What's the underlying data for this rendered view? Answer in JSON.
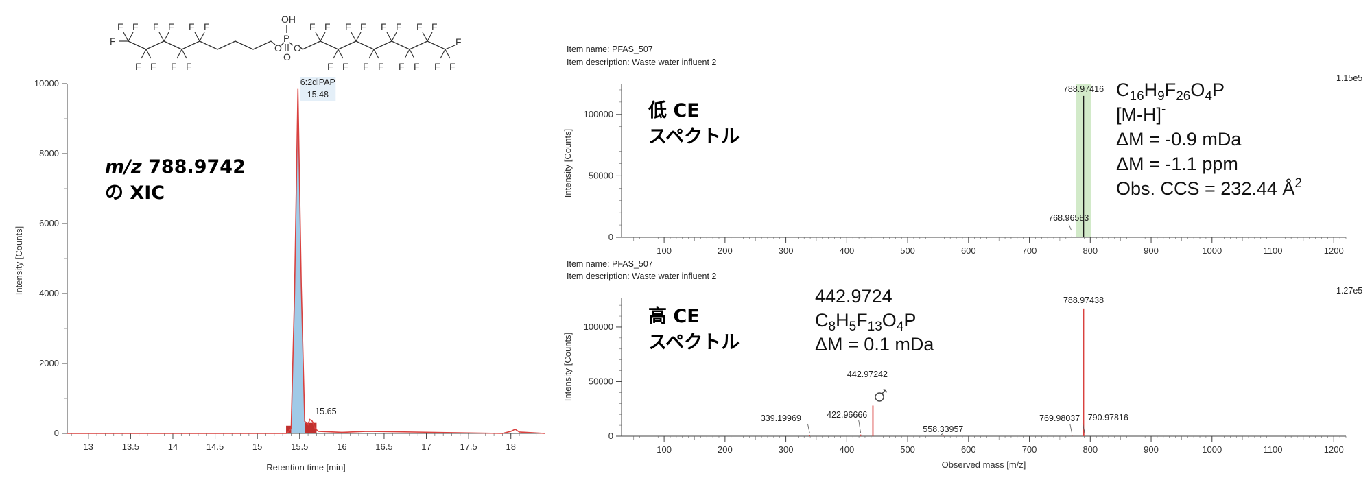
{
  "structure": {
    "name": "6:2diPAP",
    "oh_label": "OH",
    "p_label": "P",
    "o_label": "O",
    "f_label": "F"
  },
  "chart_data": [
    {
      "id": "xic",
      "type": "line",
      "xlabel": "Retention time [min]",
      "ylabel": "Intensity [Counts]",
      "xlim": [
        12.75,
        18.4
      ],
      "ylim": [
        0,
        10000
      ],
      "xticks": [
        "13",
        "13.5",
        "14",
        "14.5",
        "15",
        "15.5",
        "16",
        "16.5",
        "17",
        "17.5",
        "18"
      ],
      "yticks": [
        "0",
        "2000",
        "4000",
        "6000",
        "8000",
        "10000"
      ],
      "annotation_line1_italic": "m/z",
      "annotation_line1_value": " 788.9742",
      "annotation_line2": "の XIC",
      "peaks": [
        {
          "name": "6:2diPAP",
          "rt": "15.48",
          "x": 15.48,
          "y": 9850
        },
        {
          "name": "",
          "rt": "15.65",
          "x": 15.65,
          "y": 350
        }
      ],
      "series": [
        {
          "color": "#d9413f",
          "x": [
            12.75,
            15.35,
            15.4,
            15.44,
            15.48,
            15.52,
            15.56,
            15.6,
            15.62,
            15.65,
            15.68,
            15.72,
            16.0,
            16.3,
            17.9,
            18.0,
            18.05,
            18.1,
            18.4
          ],
          "y": [
            0,
            0,
            150,
            4000,
            9850,
            4200,
            350,
            250,
            400,
            350,
            150,
            60,
            30,
            60,
            0,
            60,
            120,
            40,
            0
          ]
        }
      ]
    },
    {
      "id": "low-ce",
      "type": "bar",
      "item_name": "Item name: PFAS_507",
      "item_description": "Item description: Waste water influent 2",
      "max_label": "1.15e5",
      "ylabel": "Intensity [Counts]",
      "xlim": [
        30,
        1220
      ],
      "ylim": [
        0,
        125000
      ],
      "xticks": [
        "100",
        "200",
        "300",
        "400",
        "500",
        "600",
        "700",
        "800",
        "900",
        "1000",
        "1100",
        "1200"
      ],
      "yticks": [
        "0",
        "50000",
        "100000"
      ],
      "spectrum_label_line1": "低 CE",
      "spectrum_label_line2": "スペクトル",
      "formula": {
        "C": "C",
        "c_sub": "16",
        "H": "H",
        "h_sub": "9",
        "F": "F",
        "f_sub": "26",
        "O": "O",
        "o_sub": "4",
        "P": "P"
      },
      "adduct": "[M-H]",
      "adduct_sup": "-",
      "delta_mda": "ΔM = -0.9 mDa",
      "delta_ppm": "ΔM = -1.1 ppm",
      "ccs": "Obs. CCS = 232.44 Å",
      "ccs_sup": "2",
      "highlight_range": [
        777,
        801
      ],
      "peaks": [
        {
          "mz": 788.97416,
          "label": "788.97416",
          "intensity": 115000
        },
        {
          "mz": 768.96583,
          "label": "768.96583",
          "intensity": 600
        }
      ]
    },
    {
      "id": "high-ce",
      "type": "bar",
      "item_name": "Item name: PFAS_507",
      "item_description": "Item description: Waste water influent 2",
      "max_label": "1.27e5",
      "xlabel": "Observed mass [m/z]",
      "ylabel": "Intensity [Counts]",
      "xlim": [
        30,
        1220
      ],
      "ylim": [
        0,
        127000
      ],
      "xticks": [
        "100",
        "200",
        "300",
        "400",
        "500",
        "600",
        "700",
        "800",
        "900",
        "1000",
        "1100",
        "1200"
      ],
      "yticks": [
        "0",
        "50000",
        "100000"
      ],
      "spectrum_label_line1": "高 CE",
      "spectrum_label_line2": "スペクトル",
      "fragment_mass": "442.9724",
      "fragment_formula": {
        "C": "C",
        "c_sub": "8",
        "H": "H",
        "h_sub": "5",
        "F": "F",
        "f_sub": "13",
        "O": "O",
        "o_sub": "4",
        "P": "P"
      },
      "fragment_delta": "ΔM = 0.1 mDa",
      "peaks": [
        {
          "mz": 788.97438,
          "label": "788.97438",
          "intensity": 117000
        },
        {
          "mz": 442.97242,
          "label": "442.97242",
          "intensity": 28000
        },
        {
          "mz": 339.19969,
          "label": "339.19969",
          "intensity": 1200
        },
        {
          "mz": 422.96666,
          "label": "422.96666",
          "intensity": 1500
        },
        {
          "mz": 558.33957,
          "label": "558.33957",
          "intensity": 800
        },
        {
          "mz": 769.98037,
          "label": "769.98037",
          "intensity": 1200
        },
        {
          "mz": 790.97816,
          "label": "790.97816",
          "intensity": 6000
        }
      ]
    }
  ]
}
